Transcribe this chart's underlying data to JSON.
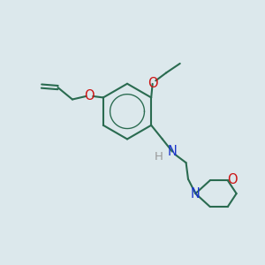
{
  "bg_color": "#dce8ec",
  "bond_color": "#2a6b50",
  "N_color": "#1a35cc",
  "O_color": "#cc1111",
  "H_color": "#999999",
  "line_width": 1.5,
  "font_size": 10.5,
  "fig_w": 3.0,
  "fig_h": 3.0,
  "dpi": 100,
  "xlim": [
    0,
    10
  ],
  "ylim": [
    0,
    10
  ]
}
